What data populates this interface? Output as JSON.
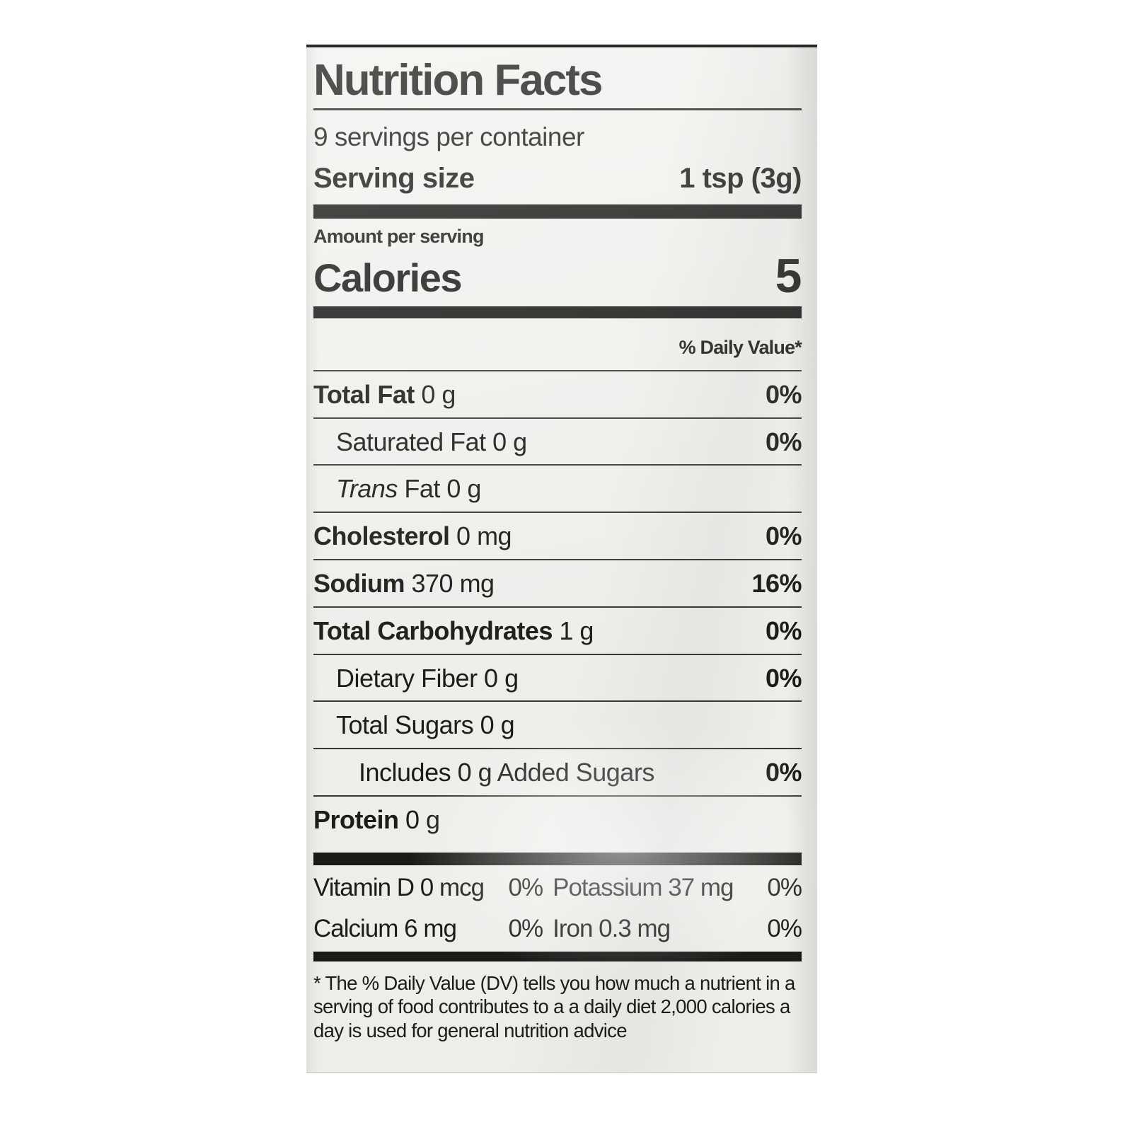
{
  "colors": {
    "text": "#1d1c1a",
    "label_background": "#f3f2ef",
    "rule": "#2b2a27",
    "photo_background": "#ffffff"
  },
  "nutrition_label": {
    "title": "Nutrition Facts",
    "servings_per_container": "9 servings per container",
    "serving_size": {
      "label": "Serving size",
      "value": "1 tsp (3g)"
    },
    "amount_per_serving": "Amount per serving",
    "calories": {
      "label": "Calories",
      "value": "5"
    },
    "daily_value_header": "% Daily Value*",
    "nutrients": [
      {
        "parts": [
          {
            "text": "Total Fat",
            "bold": true
          },
          {
            "text": " 0 g"
          }
        ],
        "dv": "0%",
        "indent": 0
      },
      {
        "parts": [
          {
            "text": "Saturated Fat 0 g"
          }
        ],
        "dv": "0%",
        "indent": 1
      },
      {
        "parts": [
          {
            "text": "Trans",
            "italic": true
          },
          {
            "text": " Fat 0 g"
          }
        ],
        "dv": "",
        "indent": 1
      },
      {
        "parts": [
          {
            "text": "Cholesterol",
            "bold": true
          },
          {
            "text": " 0 mg"
          }
        ],
        "dv": "0%",
        "indent": 0
      },
      {
        "parts": [
          {
            "text": "Sodium",
            "bold": true
          },
          {
            "text": " 370 mg"
          }
        ],
        "dv": "16%",
        "indent": 0
      },
      {
        "parts": [
          {
            "text": "Total Carbohydrates",
            "bold": true
          },
          {
            "text": " 1 g"
          }
        ],
        "dv": "0%",
        "indent": 0
      },
      {
        "parts": [
          {
            "text": "Dietary Fiber 0 g"
          }
        ],
        "dv": "0%",
        "indent": 1
      },
      {
        "parts": [
          {
            "text": "Total Sugars 0 g"
          }
        ],
        "dv": "",
        "indent": 1
      },
      {
        "parts": [
          {
            "text": "Includes 0 g Added Sugars"
          }
        ],
        "dv": "0%",
        "indent": 2
      },
      {
        "parts": [
          {
            "text": "Protein",
            "bold": true
          },
          {
            "text": " 0 g"
          }
        ],
        "dv": "",
        "indent": 0
      }
    ],
    "micronutrients": [
      {
        "name": "Vitamin D",
        "amount": "0 mcg",
        "dv": "0%"
      },
      {
        "name": "Potassium",
        "amount": "37 mg",
        "dv": "0%"
      },
      {
        "name": "Calcium",
        "amount": "6 mg",
        "dv": "0%"
      },
      {
        "name": "Iron",
        "amount": "0.3 mg",
        "dv": "0%"
      }
    ],
    "footnote": "* The % Daily Value (DV) tells you how much a nutrient in a serving of food contributes to a a daily diet  2,000 calories a day is used for general nutrition advice"
  }
}
